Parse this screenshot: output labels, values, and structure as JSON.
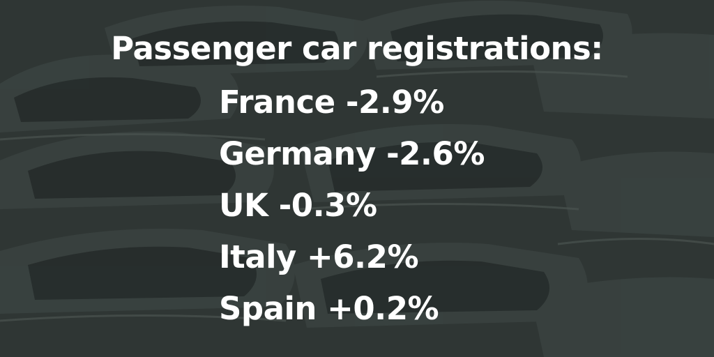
{
  "title": "Passenger car registrations:",
  "stats": [
    {
      "text": "France -2.9%"
    },
    {
      "text": "Germany -2.6%"
    },
    {
      "text": "UK -0.3%"
    },
    {
      "text": "Italy +6.2%"
    },
    {
      "text": "Spain +0.2%"
    }
  ],
  "colors": {
    "overlay": "#2f3634",
    "text": "#ffffff"
  }
}
